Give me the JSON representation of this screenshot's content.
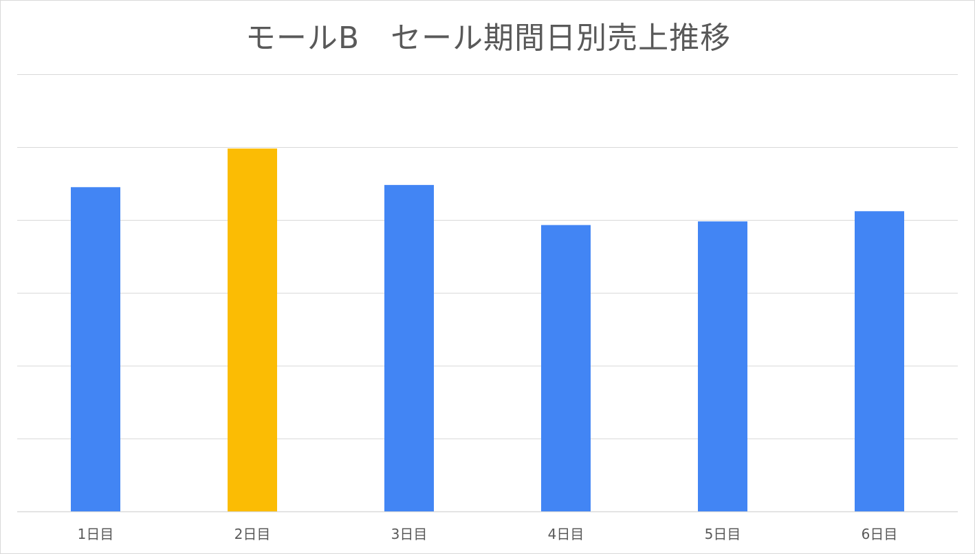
{
  "chart_data": {
    "type": "bar",
    "title": "モールB　セール期間日別売上推移",
    "xlabel": "",
    "ylabel": "",
    "categories": [
      "1日目",
      "2日目",
      "3日目",
      "4日目",
      "5日目",
      "6日目"
    ],
    "values": [
      4.45,
      4.98,
      4.48,
      3.93,
      3.98,
      4.12
    ],
    "ylim": [
      0,
      6
    ],
    "grid": true,
    "y_tick_labels_visible": false,
    "legend": "none",
    "highlight_index": 1,
    "colors": {
      "default": "#4285f4",
      "highlight": "#fbbc04",
      "grid": "#d9d9d9",
      "text": "#595959"
    }
  }
}
